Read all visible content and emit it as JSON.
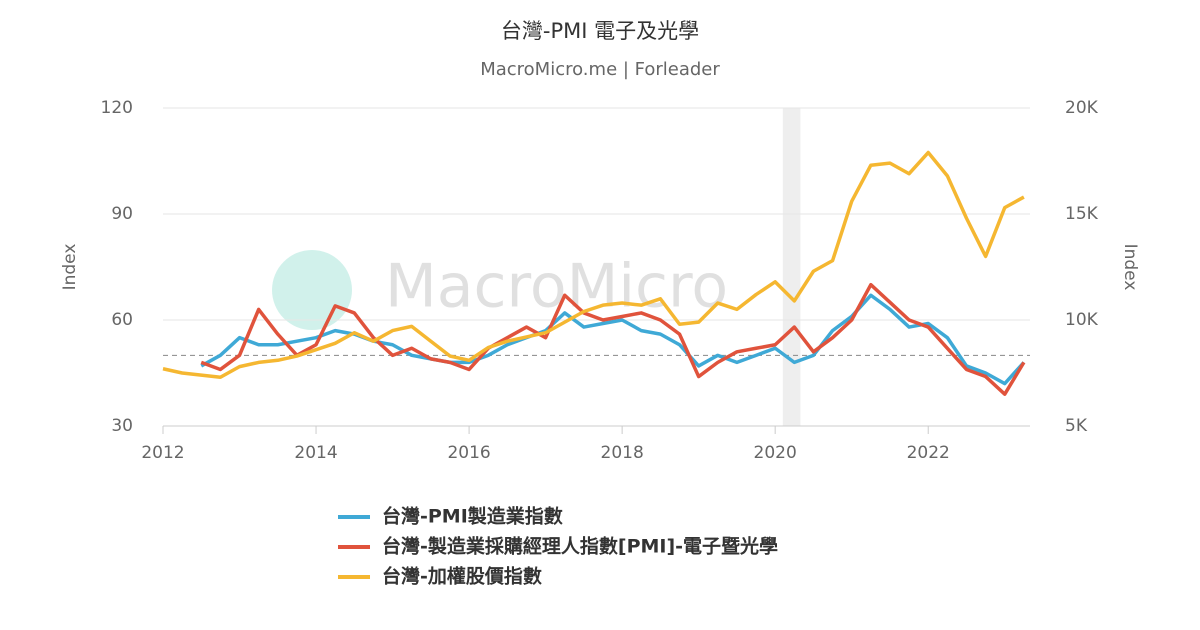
{
  "chart_data": {
    "type": "line",
    "title": "台灣-PMI 電子及光學",
    "subtitle": "MacroMicro.me | Forleader",
    "watermark": "MacroMicro",
    "y_label": "Index",
    "y2_label": "Index",
    "x": [
      2012.0,
      2012.25,
      2012.5,
      2012.75,
      2013.0,
      2013.25,
      2013.5,
      2013.75,
      2014.0,
      2014.25,
      2014.5,
      2014.75,
      2015.0,
      2015.25,
      2015.5,
      2015.75,
      2016.0,
      2016.25,
      2016.5,
      2016.75,
      2017.0,
      2017.25,
      2017.5,
      2017.75,
      2018.0,
      2018.25,
      2018.5,
      2018.75,
      2019.0,
      2019.25,
      2019.5,
      2019.75,
      2020.0,
      2020.25,
      2020.5,
      2020.75,
      2021.0,
      2021.25,
      2021.5,
      2021.75,
      2022.0,
      2022.25,
      2022.5,
      2022.75,
      2023.0,
      2023.25
    ],
    "series": [
      {
        "name": "台灣-PMI製造業指數",
        "color": "#3fa9d6",
        "values": [
          null,
          null,
          47,
          50,
          55,
          53,
          53,
          54,
          55,
          57,
          56,
          54,
          53,
          50,
          49,
          48,
          48,
          50,
          53,
          55,
          57,
          62,
          58,
          59,
          60,
          57,
          56,
          53,
          47,
          50,
          48,
          50,
          52,
          48,
          50,
          57,
          61,
          67,
          63,
          58,
          59,
          55,
          47,
          45,
          42,
          48
        ]
      },
      {
        "name": "台灣-製造業採購經理人指數[PMI]-電子暨光學",
        "color": "#e0533c",
        "values": [
          null,
          null,
          48,
          46,
          50,
          63,
          56,
          50,
          53,
          64,
          62,
          55,
          50,
          52,
          49,
          48,
          46,
          52,
          55,
          58,
          55,
          67,
          62,
          60,
          61,
          62,
          60,
          56,
          44,
          48,
          51,
          52,
          53,
          58,
          51,
          55,
          60,
          70,
          65,
          60,
          58,
          52,
          46,
          44,
          39,
          48
        ]
      },
      {
        "name": "台灣-加權股價指數",
        "color": "#f5b731",
        "axis": "y2",
        "values": [
          7700,
          7500,
          7400,
          7300,
          7800,
          8000,
          8100,
          8300,
          8600,
          8900,
          9400,
          9000,
          9500,
          9700,
          9000,
          8300,
          8100,
          8700,
          9000,
          9200,
          9400,
          9900,
          10400,
          10700,
          10800,
          10700,
          11000,
          9800,
          9900,
          10800,
          10500,
          11200,
          11800,
          10900,
          12300,
          12800,
          15600,
          17300,
          17400,
          16900,
          17900,
          16800,
          14800,
          13000,
          15300,
          15800
        ]
      }
    ],
    "xlim": [
      2012,
      2023.33
    ],
    "xticks": [
      2012,
      2014,
      2016,
      2018,
      2020,
      2022
    ],
    "ylim": [
      30,
      120
    ],
    "yticks": [
      30,
      60,
      90,
      120
    ],
    "y2lim": [
      5000,
      20000
    ],
    "y2ticks": [
      {
        "value": 5000,
        "label": "5K"
      },
      {
        "value": 10000,
        "label": "10K"
      },
      {
        "value": 15000,
        "label": "15K"
      },
      {
        "value": 20000,
        "label": "20K"
      }
    ],
    "reference_line": 50,
    "shaded_x": [
      2020.1,
      2020.33
    ],
    "grid": true
  }
}
